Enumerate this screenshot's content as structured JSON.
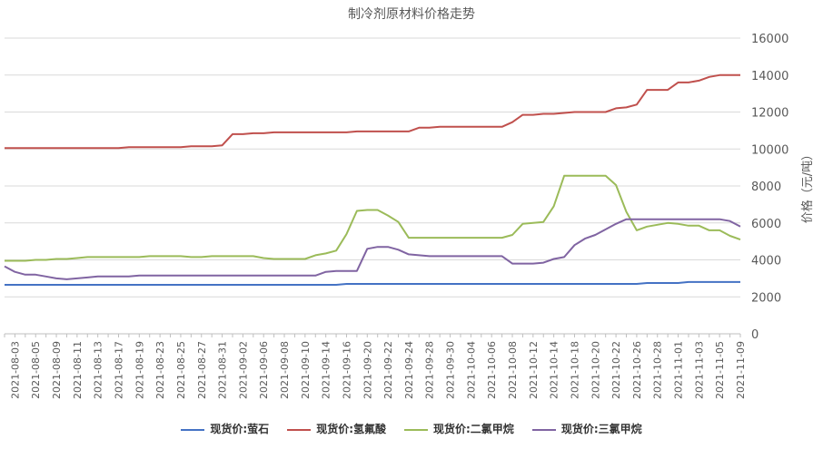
{
  "chart_data": {
    "type": "line",
    "title": "制冷剂原材料价格走势",
    "ylabel": "价格（元/吨）",
    "xlabel": "",
    "ylim": [
      0,
      16000
    ],
    "y_ticks": [
      0,
      2000,
      4000,
      6000,
      8000,
      10000,
      12000,
      14000,
      16000
    ],
    "y_axis_side": "right",
    "grid": "horizontal",
    "legend_position": "bottom",
    "x_tick_labels": [
      "2021-08-03",
      "2021-08-05",
      "2021-08-09",
      "2021-08-11",
      "2021-08-13",
      "2021-08-17",
      "2021-08-19",
      "2021-08-23",
      "2021-08-25",
      "2021-08-27",
      "2021-08-31",
      "2021-09-02",
      "2021-09-06",
      "2021-09-08",
      "2021-09-10",
      "2021-09-14",
      "2021-09-16",
      "2021-09-20",
      "2021-09-22",
      "2021-09-24",
      "2021-09-28",
      "2021-09-30",
      "2021-10-04",
      "2021-10-06",
      "2021-10-08",
      "2021-10-12",
      "2021-10-14",
      "2021-10-18",
      "2021-10-20",
      "2021-10-22",
      "2021-10-26",
      "2021-10-28",
      "2021-11-01",
      "2021-11-03",
      "2021-11-05",
      "2021-11-09"
    ],
    "categories": [
      "2021-08-02",
      "2021-08-03",
      "2021-08-04",
      "2021-08-05",
      "2021-08-06",
      "2021-08-09",
      "2021-08-10",
      "2021-08-11",
      "2021-08-12",
      "2021-08-13",
      "2021-08-16",
      "2021-08-17",
      "2021-08-18",
      "2021-08-19",
      "2021-08-20",
      "2021-08-23",
      "2021-08-24",
      "2021-08-25",
      "2021-08-26",
      "2021-08-27",
      "2021-08-30",
      "2021-08-31",
      "2021-09-01",
      "2021-09-02",
      "2021-09-03",
      "2021-09-06",
      "2021-09-07",
      "2021-09-08",
      "2021-09-09",
      "2021-09-10",
      "2021-09-13",
      "2021-09-14",
      "2021-09-15",
      "2021-09-16",
      "2021-09-17",
      "2021-09-20",
      "2021-09-21",
      "2021-09-22",
      "2021-09-23",
      "2021-09-24",
      "2021-09-27",
      "2021-09-28",
      "2021-09-29",
      "2021-09-30",
      "2021-10-01",
      "2021-10-04",
      "2021-10-05",
      "2021-10-06",
      "2021-10-07",
      "2021-10-08",
      "2021-10-11",
      "2021-10-12",
      "2021-10-13",
      "2021-10-14",
      "2021-10-15",
      "2021-10-18",
      "2021-10-19",
      "2021-10-20",
      "2021-10-21",
      "2021-10-22",
      "2021-10-25",
      "2021-10-26",
      "2021-10-27",
      "2021-10-28",
      "2021-10-29",
      "2021-11-01",
      "2021-11-02",
      "2021-11-03",
      "2021-11-04",
      "2021-11-05",
      "2021-11-08",
      "2021-11-09"
    ],
    "series": [
      {
        "name": "现货价:萤石",
        "color": "#4472c4",
        "values": [
          2650,
          2650,
          2650,
          2650,
          2650,
          2650,
          2650,
          2650,
          2650,
          2650,
          2650,
          2650,
          2650,
          2650,
          2650,
          2650,
          2650,
          2650,
          2650,
          2650,
          2650,
          2650,
          2650,
          2650,
          2650,
          2650,
          2650,
          2650,
          2650,
          2650,
          2650,
          2650,
          2650,
          2700,
          2700,
          2700,
          2700,
          2700,
          2700,
          2700,
          2700,
          2700,
          2700,
          2700,
          2700,
          2700,
          2700,
          2700,
          2700,
          2700,
          2700,
          2700,
          2700,
          2700,
          2700,
          2700,
          2700,
          2700,
          2700,
          2700,
          2700,
          2700,
          2750,
          2750,
          2750,
          2750,
          2800,
          2800,
          2800,
          2800,
          2800,
          2800
        ]
      },
      {
        "name": "现货价:氢氟酸",
        "color": "#c0504d",
        "values": [
          10050,
          10050,
          10050,
          10050,
          10050,
          10050,
          10050,
          10050,
          10050,
          10050,
          10050,
          10050,
          10100,
          10100,
          10100,
          10100,
          10100,
          10100,
          10150,
          10150,
          10150,
          10200,
          10800,
          10800,
          10850,
          10850,
          10900,
          10900,
          10900,
          10900,
          10900,
          10900,
          10900,
          10900,
          10950,
          10950,
          10950,
          10950,
          10950,
          10950,
          11150,
          11150,
          11200,
          11200,
          11200,
          11200,
          11200,
          11200,
          11200,
          11450,
          11850,
          11850,
          11900,
          11900,
          11950,
          12000,
          12000,
          12000,
          12000,
          12200,
          12250,
          12400,
          13200,
          13200,
          13200,
          13600,
          13600,
          13700,
          13900,
          14000,
          14000,
          14000
        ]
      },
      {
        "name": "现货价:二氯甲烷",
        "color": "#9bbb59",
        "values": [
          3950,
          3950,
          3950,
          4000,
          4000,
          4050,
          4050,
          4100,
          4150,
          4150,
          4150,
          4150,
          4150,
          4150,
          4200,
          4200,
          4200,
          4200,
          4150,
          4150,
          4200,
          4200,
          4200,
          4200,
          4200,
          4100,
          4050,
          4050,
          4050,
          4050,
          4250,
          4350,
          4500,
          5400,
          6650,
          6700,
          6700,
          6400,
          6050,
          5200,
          5200,
          5200,
          5200,
          5200,
          5200,
          5200,
          5200,
          5200,
          5200,
          5350,
          5950,
          6000,
          6050,
          6900,
          8550,
          8550,
          8550,
          8550,
          8550,
          8050,
          6600,
          5600,
          5800,
          5900,
          6000,
          5950,
          5850,
          5850,
          5600,
          5600,
          5300,
          5100
        ]
      },
      {
        "name": "现货价:三氯甲烷",
        "color": "#8064a2",
        "values": [
          3650,
          3350,
          3200,
          3200,
          3100,
          3000,
          2950,
          3000,
          3050,
          3100,
          3100,
          3100,
          3100,
          3150,
          3150,
          3150,
          3150,
          3150,
          3150,
          3150,
          3150,
          3150,
          3150,
          3150,
          3150,
          3150,
          3150,
          3150,
          3150,
          3150,
          3150,
          3350,
          3400,
          3400,
          3400,
          4600,
          4700,
          4700,
          4550,
          4300,
          4250,
          4200,
          4200,
          4200,
          4200,
          4200,
          4200,
          4200,
          4200,
          3800,
          3800,
          3800,
          3850,
          4050,
          4150,
          4800,
          5150,
          5350,
          5650,
          5950,
          6200,
          6200,
          6200,
          6200,
          6200,
          6200,
          6200,
          6200,
          6200,
          6200,
          6100,
          5800
        ]
      }
    ]
  }
}
